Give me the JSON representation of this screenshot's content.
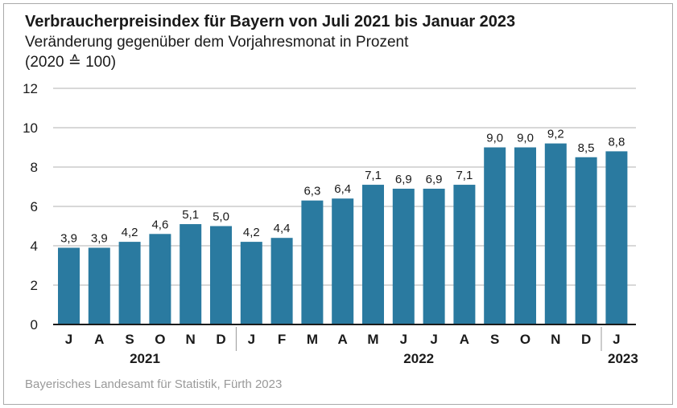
{
  "title": "Verbraucherpreisindex für Bayern von Juli 2021 bis Januar 2023",
  "subtitle": "Veränderung gegenüber dem Vorjahresmonat in Prozent",
  "subnote": "(2020 ≙ 100)",
  "source": "Bayerisches Landesamt für Statistik, Fürth 2023",
  "colors": {
    "bar": "#2a7aa0",
    "grid": "#cccccc",
    "axis": "#1a1a1a",
    "separator": "#999999"
  },
  "chart_data": {
    "type": "bar",
    "categories": [
      "J",
      "A",
      "S",
      "O",
      "N",
      "D",
      "J",
      "F",
      "M",
      "A",
      "M",
      "J",
      "J",
      "A",
      "S",
      "O",
      "N",
      "D",
      "J"
    ],
    "values": [
      3.9,
      3.9,
      4.2,
      4.6,
      5.1,
      5.0,
      4.2,
      4.4,
      6.3,
      6.4,
      7.1,
      6.9,
      6.9,
      7.1,
      9.0,
      9.0,
      9.2,
      8.5,
      8.8
    ],
    "value_labels": [
      "3,9",
      "3,9",
      "4,2",
      "4,6",
      "5,1",
      "5,0",
      "4,2",
      "4,4",
      "6,3",
      "6,4",
      "7,1",
      "6,9",
      "6,9",
      "7,1",
      "9,0",
      "9,0",
      "9,2",
      "8,5",
      "8,8"
    ],
    "year_groups": [
      {
        "label": "2021",
        "start": 0,
        "end": 5
      },
      {
        "label": "2022",
        "start": 6,
        "end": 17
      },
      {
        "label": "2023",
        "start": 18,
        "end": 18
      }
    ],
    "yticks": [
      0,
      2,
      4,
      6,
      8,
      10,
      12
    ],
    "ylim": [
      0,
      12
    ],
    "grid": true,
    "legend": "none"
  }
}
